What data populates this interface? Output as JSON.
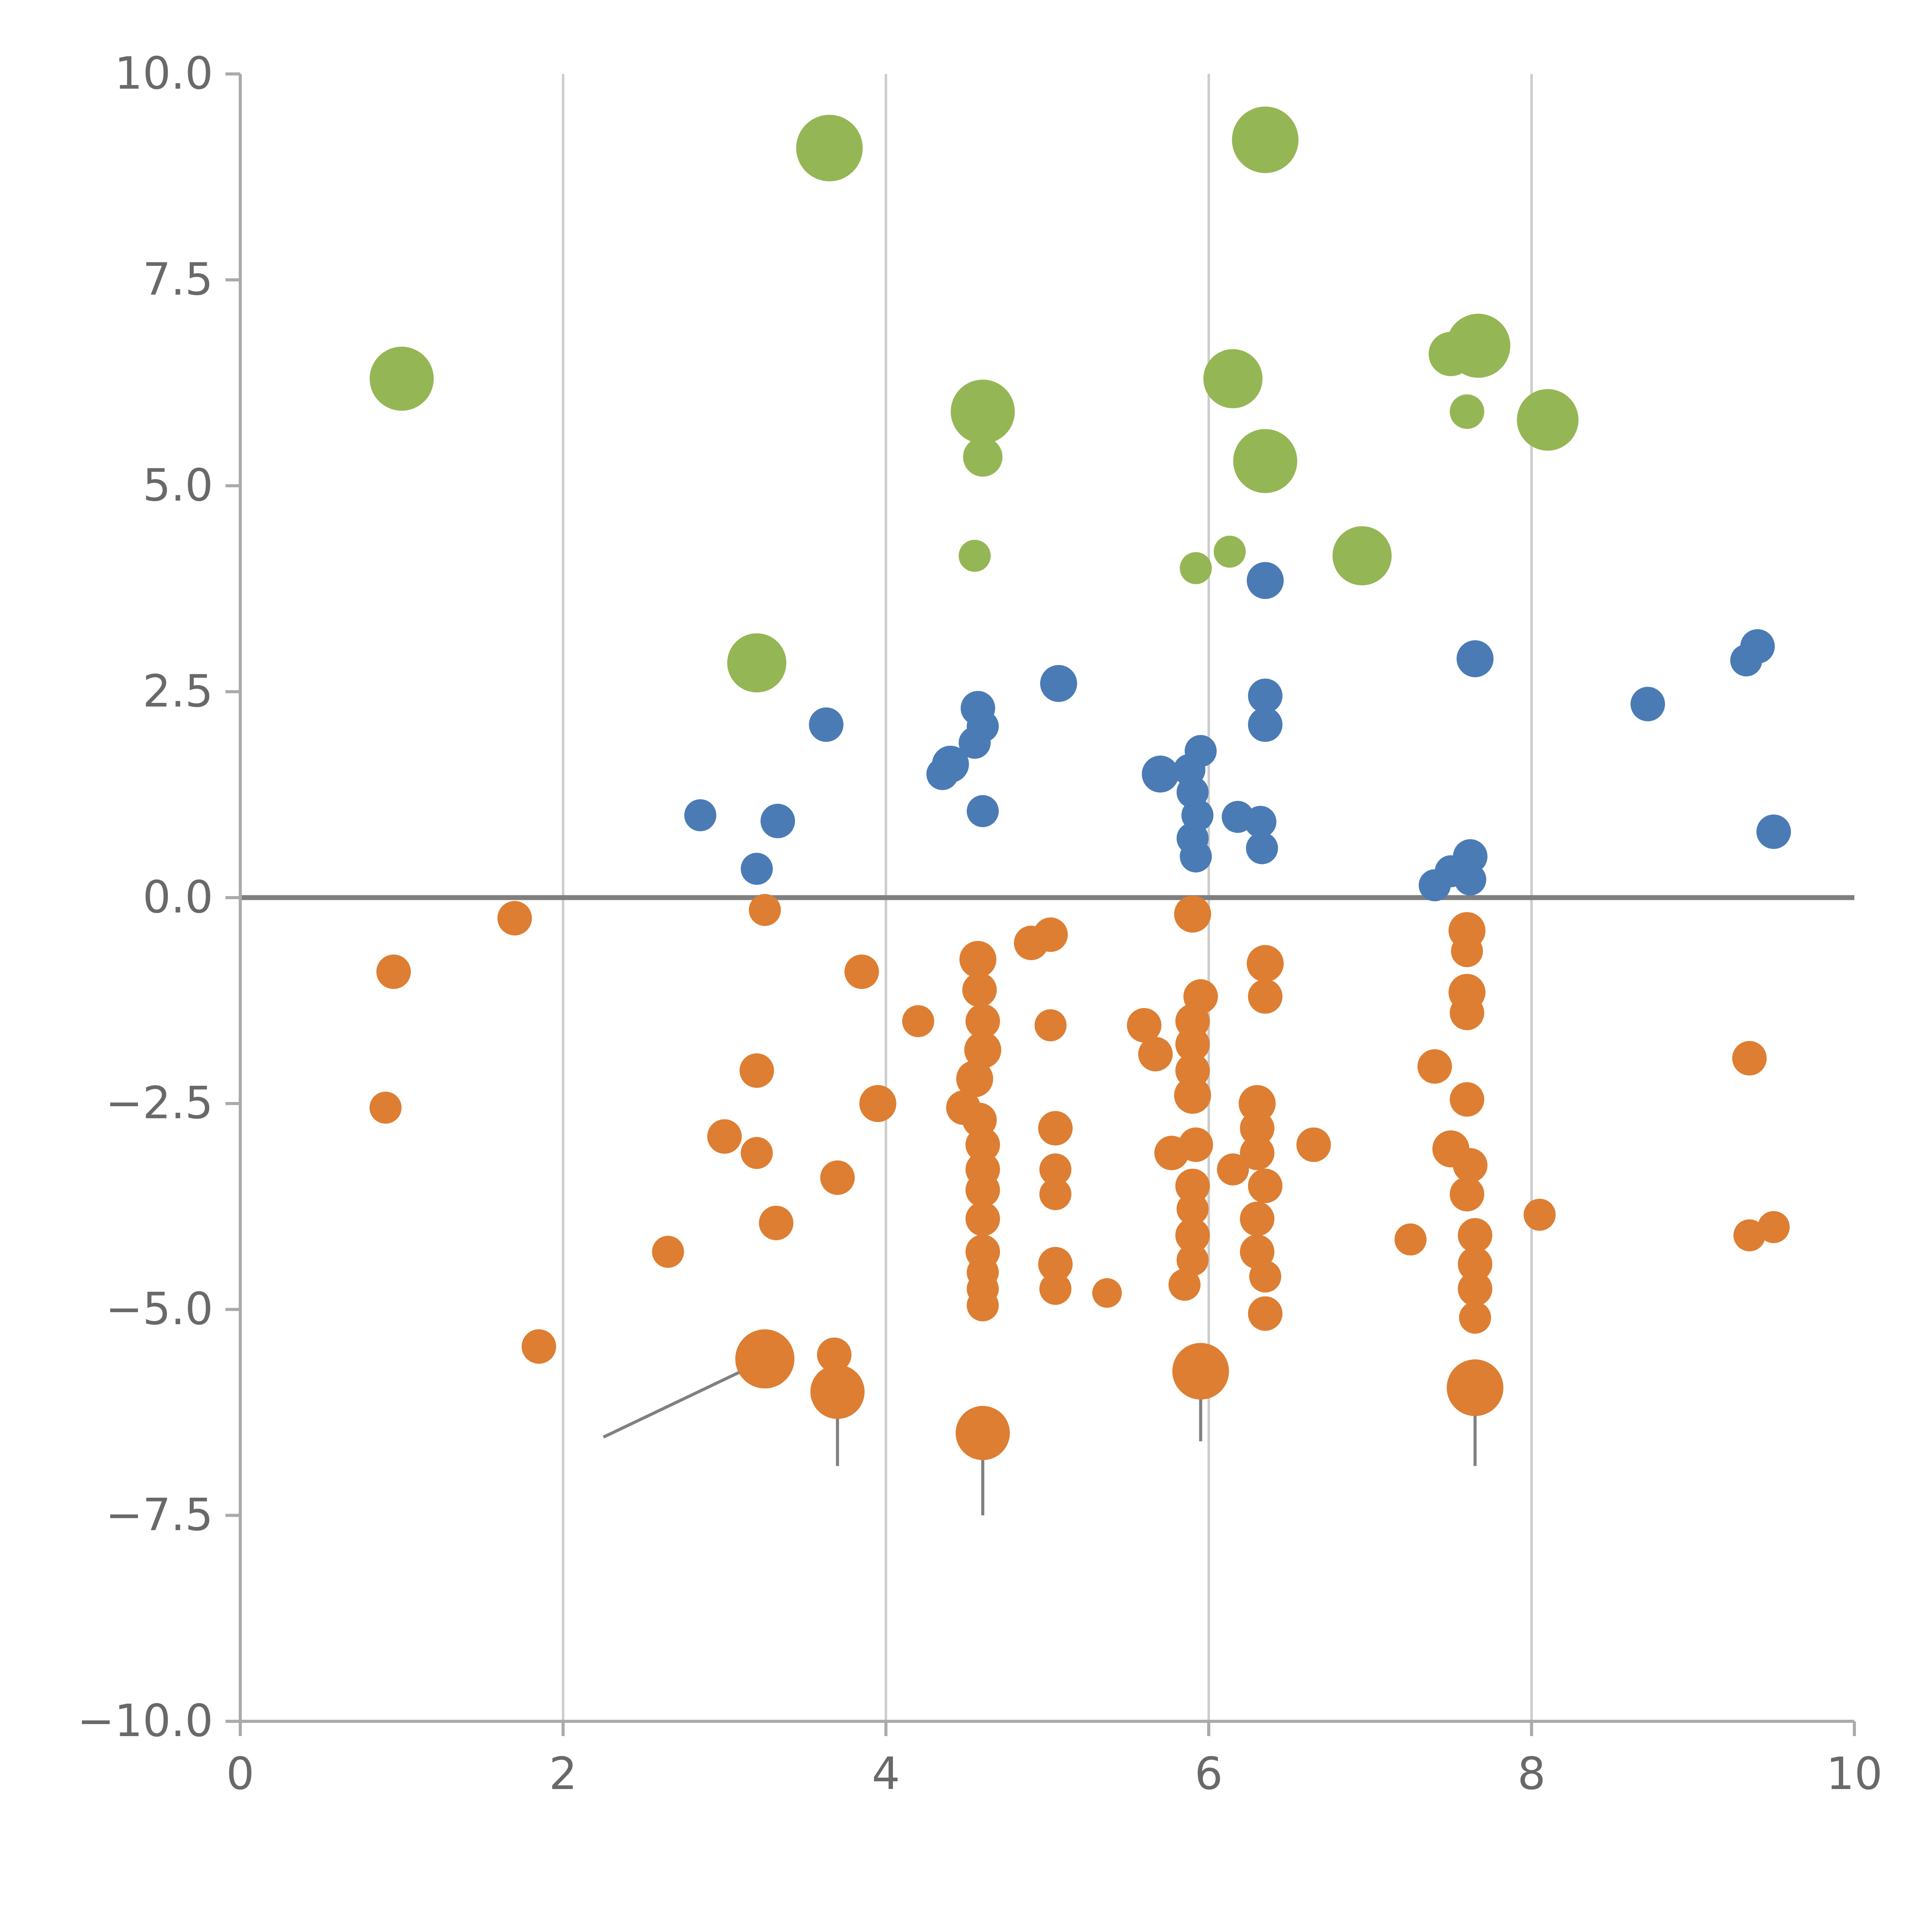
{
  "figure": {
    "background": "#ffffff"
  },
  "chart_data": {
    "type": "scatter",
    "title": "",
    "xlabel": "",
    "ylabel": "",
    "xlim": [
      0,
      10
    ],
    "ylim": [
      -10,
      10
    ],
    "x_ticks": [
      0,
      2,
      4,
      6,
      8,
      10
    ],
    "x_tick_labels": [
      "0",
      "2",
      "4",
      "6",
      "8",
      "10"
    ],
    "y_ticks": [
      -10.0,
      -7.5,
      -5.0,
      -2.5,
      0.0,
      2.5,
      5.0,
      7.5,
      10.0
    ],
    "y_tick_labels": [
      "−10.0",
      "−7.5",
      "−5.0",
      "−2.5",
      "0.0",
      "2.5",
      "5.0",
      "7.5",
      "10.0"
    ],
    "grid": {
      "vertical_x": [
        2,
        4,
        6,
        8
      ],
      "color": "#cccccc",
      "width": 2
    },
    "zero_line": {
      "y": 0,
      "color": "#7f7f7f",
      "width": 4
    },
    "axis": {
      "spine_color": "#aaaaaa",
      "tick_color": "#aaaaaa",
      "label_color": "#696969",
      "label_font_size": 36
    },
    "legend": null,
    "annotation_lines": [
      {
        "x1": 2.25,
        "y1": -6.55,
        "x2": 3.18,
        "y2": -5.68
      },
      {
        "x1": 3.7,
        "y1": -6.2,
        "x2": 3.7,
        "y2": -6.9
      },
      {
        "x1": 4.6,
        "y1": -6.7,
        "x2": 4.6,
        "y2": -7.5
      },
      {
        "x1": 5.95,
        "y1": -5.95,
        "x2": 5.95,
        "y2": -6.6
      },
      {
        "x1": 7.65,
        "y1": -6.15,
        "x2": 7.65,
        "y2": -6.9
      }
    ],
    "series": [
      {
        "name": "green",
        "color": "#95b655",
        "points": [
          {
            "x": 3.65,
            "y": 9.1,
            "r": 27
          },
          {
            "x": 6.35,
            "y": 9.2,
            "r": 27
          },
          {
            "x": 1.0,
            "y": 6.3,
            "r": 26
          },
          {
            "x": 4.6,
            "y": 5.9,
            "r": 26
          },
          {
            "x": 4.6,
            "y": 5.35,
            "r": 16
          },
          {
            "x": 6.15,
            "y": 6.3,
            "r": 24
          },
          {
            "x": 6.35,
            "y": 5.3,
            "r": 26
          },
          {
            "x": 7.5,
            "y": 6.6,
            "r": 18
          },
          {
            "x": 7.67,
            "y": 6.7,
            "r": 26
          },
          {
            "x": 7.6,
            "y": 5.9,
            "r": 14
          },
          {
            "x": 8.1,
            "y": 5.8,
            "r": 25
          },
          {
            "x": 4.55,
            "y": 4.15,
            "r": 13
          },
          {
            "x": 5.92,
            "y": 4.0,
            "r": 13
          },
          {
            "x": 6.13,
            "y": 4.2,
            "r": 13
          },
          {
            "x": 6.95,
            "y": 4.15,
            "r": 24
          },
          {
            "x": 3.2,
            "y": 2.85,
            "r": 24
          }
        ]
      },
      {
        "name": "blue",
        "color": "#4a7bb5",
        "points": [
          {
            "x": 6.35,
            "y": 3.85,
            "r": 15
          },
          {
            "x": 7.65,
            "y": 2.9,
            "r": 15
          },
          {
            "x": 9.4,
            "y": 3.05,
            "r": 14
          },
          {
            "x": 9.33,
            "y": 2.88,
            "r": 13
          },
          {
            "x": 8.72,
            "y": 2.35,
            "r": 14
          },
          {
            "x": 5.07,
            "y": 2.6,
            "r": 15
          },
          {
            "x": 3.63,
            "y": 2.1,
            "r": 14
          },
          {
            "x": 4.57,
            "y": 2.3,
            "r": 14
          },
          {
            "x": 4.6,
            "y": 2.08,
            "r": 13
          },
          {
            "x": 4.55,
            "y": 1.88,
            "r": 13
          },
          {
            "x": 4.4,
            "y": 1.62,
            "r": 15
          },
          {
            "x": 4.35,
            "y": 1.5,
            "r": 13
          },
          {
            "x": 4.6,
            "y": 1.05,
            "r": 13
          },
          {
            "x": 5.7,
            "y": 1.5,
            "r": 15
          },
          {
            "x": 5.88,
            "y": 1.55,
            "r": 13
          },
          {
            "x": 5.95,
            "y": 1.78,
            "r": 13
          },
          {
            "x": 5.9,
            "y": 1.28,
            "r": 13
          },
          {
            "x": 5.93,
            "y": 1.0,
            "r": 13
          },
          {
            "x": 5.9,
            "y": 0.72,
            "r": 13
          },
          {
            "x": 5.92,
            "y": 0.5,
            "r": 13
          },
          {
            "x": 6.18,
            "y": 0.98,
            "r": 13
          },
          {
            "x": 6.32,
            "y": 0.92,
            "r": 13
          },
          {
            "x": 6.35,
            "y": 2.45,
            "r": 14
          },
          {
            "x": 6.35,
            "y": 2.1,
            "r": 14
          },
          {
            "x": 6.33,
            "y": 0.6,
            "r": 13
          },
          {
            "x": 2.85,
            "y": 1.0,
            "r": 13
          },
          {
            "x": 3.33,
            "y": 0.93,
            "r": 14
          },
          {
            "x": 3.2,
            "y": 0.35,
            "r": 13
          },
          {
            "x": 7.4,
            "y": 0.15,
            "r": 13
          },
          {
            "x": 7.5,
            "y": 0.32,
            "r": 13
          },
          {
            "x": 7.62,
            "y": 0.5,
            "r": 14
          },
          {
            "x": 7.62,
            "y": 0.22,
            "r": 13
          },
          {
            "x": 9.5,
            "y": 0.8,
            "r": 14
          }
        ]
      },
      {
        "name": "orange",
        "color": "#dd7e32",
        "points": [
          {
            "x": 1.7,
            "y": -0.25,
            "r": 14
          },
          {
            "x": 0.95,
            "y": -0.9,
            "r": 14
          },
          {
            "x": 0.9,
            "y": -2.55,
            "r": 13
          },
          {
            "x": 3.25,
            "y": -0.15,
            "r": 13
          },
          {
            "x": 3.85,
            "y": -0.9,
            "r": 14
          },
          {
            "x": 4.2,
            "y": -1.5,
            "r": 13
          },
          {
            "x": 4.57,
            "y": -0.75,
            "r": 15
          },
          {
            "x": 4.9,
            "y": -0.55,
            "r": 14
          },
          {
            "x": 5.02,
            "y": -0.45,
            "r": 14
          },
          {
            "x": 4.58,
            "y": -1.12,
            "r": 14
          },
          {
            "x": 4.6,
            "y": -1.5,
            "r": 14
          },
          {
            "x": 4.6,
            "y": -1.85,
            "r": 15
          },
          {
            "x": 5.02,
            "y": -1.55,
            "r": 13
          },
          {
            "x": 4.55,
            "y": -2.2,
            "r": 15
          },
          {
            "x": 4.48,
            "y": -2.55,
            "r": 14
          },
          {
            "x": 4.58,
            "y": -2.7,
            "r": 14
          },
          {
            "x": 4.6,
            "y": -3.0,
            "r": 14
          },
          {
            "x": 4.6,
            "y": -3.3,
            "r": 14
          },
          {
            "x": 4.6,
            "y": -3.55,
            "r": 14
          },
          {
            "x": 4.6,
            "y": -3.9,
            "r": 14
          },
          {
            "x": 5.05,
            "y": -2.8,
            "r": 14
          },
          {
            "x": 5.05,
            "y": -3.3,
            "r": 13
          },
          {
            "x": 5.05,
            "y": -3.6,
            "r": 13
          },
          {
            "x": 3.0,
            "y": -2.9,
            "r": 14
          },
          {
            "x": 3.2,
            "y": -2.1,
            "r": 14
          },
          {
            "x": 3.2,
            "y": -3.1,
            "r": 13
          },
          {
            "x": 3.7,
            "y": -3.4,
            "r": 14
          },
          {
            "x": 3.32,
            "y": -3.95,
            "r": 14
          },
          {
            "x": 3.95,
            "y": -2.5,
            "r": 15
          },
          {
            "x": 2.65,
            "y": -4.3,
            "r": 13
          },
          {
            "x": 1.85,
            "y": -5.45,
            "r": 14
          },
          {
            "x": 3.25,
            "y": -5.6,
            "r": 24
          },
          {
            "x": 3.68,
            "y": -5.55,
            "r": 14
          },
          {
            "x": 3.7,
            "y": -6.0,
            "r": 22
          },
          {
            "x": 4.6,
            "y": -6.5,
            "r": 22
          },
          {
            "x": 4.6,
            "y": -4.3,
            "r": 14
          },
          {
            "x": 4.6,
            "y": -4.55,
            "r": 13
          },
          {
            "x": 4.6,
            "y": -4.75,
            "r": 13
          },
          {
            "x": 4.6,
            "y": -4.95,
            "r": 13
          },
          {
            "x": 5.05,
            "y": -4.45,
            "r": 14
          },
          {
            "x": 5.05,
            "y": -4.75,
            "r": 13
          },
          {
            "x": 5.37,
            "y": -4.8,
            "r": 12
          },
          {
            "x": 5.6,
            "y": -1.55,
            "r": 14
          },
          {
            "x": 5.67,
            "y": -1.9,
            "r": 14
          },
          {
            "x": 5.9,
            "y": -0.2,
            "r": 15
          },
          {
            "x": 5.95,
            "y": -1.2,
            "r": 14
          },
          {
            "x": 5.9,
            "y": -1.5,
            "r": 14
          },
          {
            "x": 5.9,
            "y": -1.78,
            "r": 14
          },
          {
            "x": 5.9,
            "y": -2.1,
            "r": 14
          },
          {
            "x": 5.9,
            "y": -2.4,
            "r": 15
          },
          {
            "x": 5.77,
            "y": -3.1,
            "r": 14
          },
          {
            "x": 5.92,
            "y": -3.0,
            "r": 14
          },
          {
            "x": 5.9,
            "y": -3.5,
            "r": 14
          },
          {
            "x": 5.9,
            "y": -3.78,
            "r": 13
          },
          {
            "x": 5.9,
            "y": -4.1,
            "r": 14
          },
          {
            "x": 5.9,
            "y": -4.4,
            "r": 13
          },
          {
            "x": 5.85,
            "y": -4.7,
            "r": 13
          },
          {
            "x": 6.35,
            "y": -0.8,
            "r": 15
          },
          {
            "x": 6.35,
            "y": -1.2,
            "r": 14
          },
          {
            "x": 6.3,
            "y": -2.5,
            "r": 15
          },
          {
            "x": 6.3,
            "y": -2.8,
            "r": 14
          },
          {
            "x": 6.3,
            "y": -3.1,
            "r": 14
          },
          {
            "x": 6.15,
            "y": -3.3,
            "r": 13
          },
          {
            "x": 6.35,
            "y": -3.5,
            "r": 14
          },
          {
            "x": 6.3,
            "y": -3.9,
            "r": 14
          },
          {
            "x": 6.3,
            "y": -4.3,
            "r": 14
          },
          {
            "x": 6.35,
            "y": -4.6,
            "r": 13
          },
          {
            "x": 6.35,
            "y": -5.05,
            "r": 14
          },
          {
            "x": 6.65,
            "y": -3.0,
            "r": 14
          },
          {
            "x": 5.95,
            "y": -5.75,
            "r": 23
          },
          {
            "x": 7.25,
            "y": -4.15,
            "r": 13
          },
          {
            "x": 7.4,
            "y": -2.05,
            "r": 14
          },
          {
            "x": 7.6,
            "y": -0.4,
            "r": 15
          },
          {
            "x": 7.6,
            "y": -0.65,
            "r": 13
          },
          {
            "x": 7.6,
            "y": -1.15,
            "r": 15
          },
          {
            "x": 7.6,
            "y": -1.4,
            "r": 14
          },
          {
            "x": 7.6,
            "y": -2.45,
            "r": 14
          },
          {
            "x": 7.5,
            "y": -3.05,
            "r": 15
          },
          {
            "x": 7.62,
            "y": -3.25,
            "r": 14
          },
          {
            "x": 7.6,
            "y": -3.6,
            "r": 14
          },
          {
            "x": 7.65,
            "y": -4.1,
            "r": 14
          },
          {
            "x": 7.65,
            "y": -4.45,
            "r": 14
          },
          {
            "x": 7.65,
            "y": -4.75,
            "r": 14
          },
          {
            "x": 7.65,
            "y": -5.1,
            "r": 13
          },
          {
            "x": 7.65,
            "y": -5.95,
            "r": 23
          },
          {
            "x": 8.05,
            "y": -3.85,
            "r": 13
          },
          {
            "x": 9.35,
            "y": -1.95,
            "r": 14
          },
          {
            "x": 9.35,
            "y": -4.1,
            "r": 13
          },
          {
            "x": 9.5,
            "y": -4.0,
            "r": 13
          }
        ]
      }
    ]
  }
}
